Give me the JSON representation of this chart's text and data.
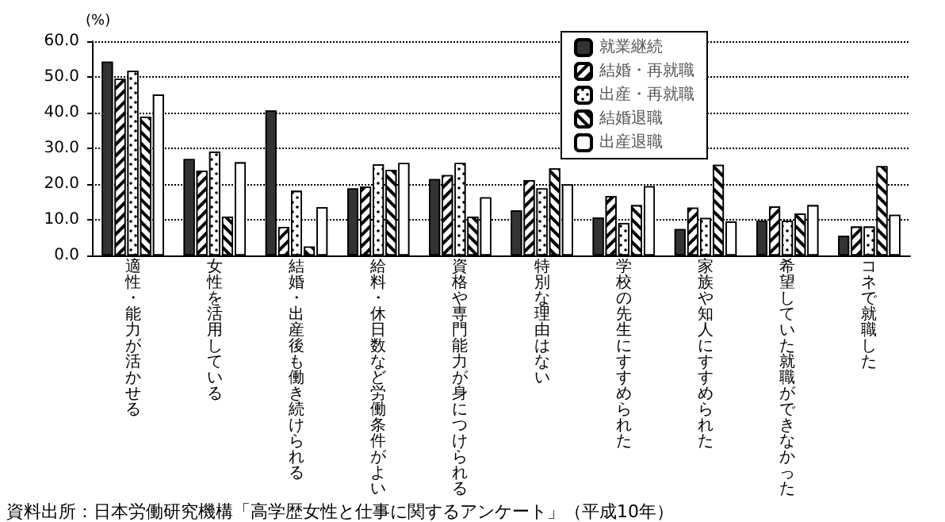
{
  "chart_data": {
    "type": "bar",
    "ylabel": "(%)",
    "categories": [
      "適性・能力が活かせる",
      "女性を活用している",
      "結婚・出産後も働き続けられる",
      "給料・休日数など労働条件がよい",
      "資格や専門能力が身につけられる",
      "特別な理由はない",
      "学校の先生にすすめられた",
      "家族や知人にすすめられた",
      "希望していた就職ができなかった",
      "コネで就職した"
    ],
    "series": [
      {
        "name": "就業継続",
        "color": "#333333",
        "values": [
          54.3,
          27.0,
          40.6,
          18.8,
          21.4,
          12.6,
          10.6,
          7.4,
          9.8,
          5.5
        ]
      },
      {
        "name": "結婚・再就職",
        "color": "#ffffff",
        "values": [
          49.5,
          23.7,
          8.0,
          19.3,
          22.5,
          21.1,
          16.6,
          13.4,
          13.7,
          8.1
        ]
      },
      {
        "name": "出産・再就職",
        "color": "#ffffff",
        "values": [
          51.7,
          29.1,
          18.1,
          25.5,
          25.9,
          18.8,
          9.1,
          10.5,
          9.7,
          8.1
        ]
      },
      {
        "name": "結婚退職",
        "color": "#ffffff",
        "values": [
          38.9,
          10.9,
          2.5,
          24.0,
          10.9,
          24.4,
          14.1,
          25.4,
          11.7,
          25.0
        ]
      },
      {
        "name": "出産退職",
        "color": "#ffffff",
        "values": [
          45.1,
          26.1,
          13.5,
          25.9,
          16.3,
          19.9,
          19.4,
          9.5,
          14.1,
          11.4
        ]
      }
    ],
    "ylim": [
      0,
      60
    ],
    "yticks": [
      {
        "value": 0,
        "label": "0.0"
      },
      {
        "value": 10,
        "label": "10.0"
      },
      {
        "value": 20,
        "label": "20.0"
      },
      {
        "value": 30,
        "label": "30.0"
      },
      {
        "value": 40,
        "label": "40.0"
      },
      {
        "value": 50,
        "label": "50.0"
      },
      {
        "value": 60,
        "label": "60.0"
      }
    ],
    "grid": "y",
    "legend": "top right",
    "annotations": [
      "資料出所：日本労働研究機構「高学歴女性と仕事に関するアンケート」（平成10年）"
    ]
  }
}
